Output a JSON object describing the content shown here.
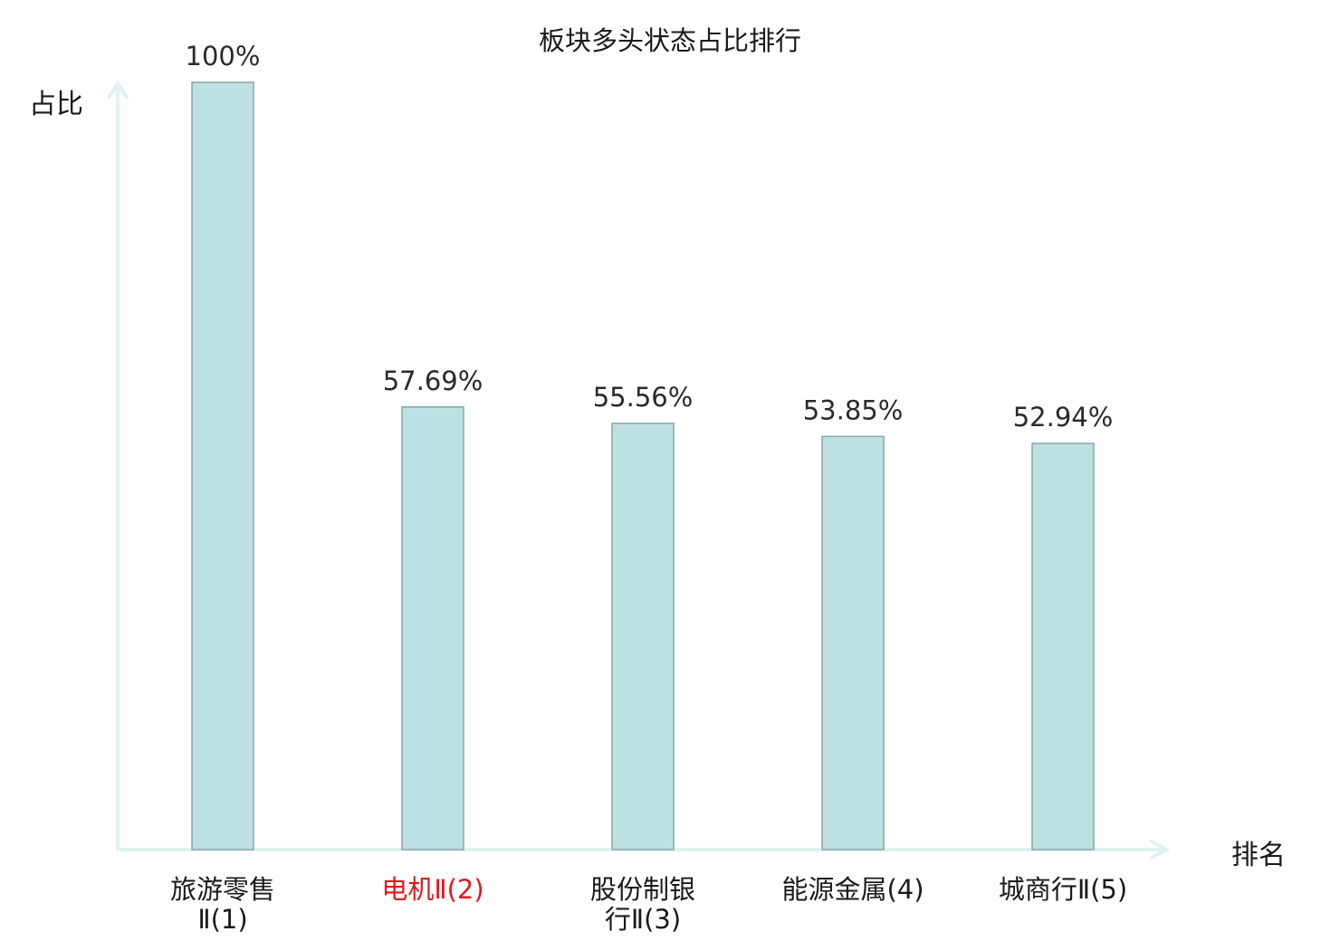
{
  "chart_data": {
    "type": "bar",
    "title": "板块多头状态占比排行",
    "ylabel": "占比",
    "xlabel": "排名",
    "ylim": [
      0,
      100
    ],
    "grid": false,
    "categories": [
      [
        "旅游零售",
        "Ⅱ(1)"
      ],
      [
        "电机Ⅱ(2)"
      ],
      [
        "股份制银",
        "行Ⅱ(3)"
      ],
      [
        "能源金属(4)"
      ],
      [
        "城商行Ⅱ(5)"
      ]
    ],
    "values": [
      100,
      57.69,
      55.56,
      53.85,
      52.94
    ],
    "value_labels": [
      "100%",
      "57.69%",
      "55.56%",
      "53.85%",
      "52.94%"
    ],
    "highlight_index": 1,
    "colors": {
      "bar_fill": "#bde0e2",
      "bar_stroke": "#8aa6a8",
      "axis": "#e0f2f0",
      "highlight_text": "#e8141c",
      "text": "#1a1a1a",
      "value_text": "#2a2a2a"
    }
  }
}
